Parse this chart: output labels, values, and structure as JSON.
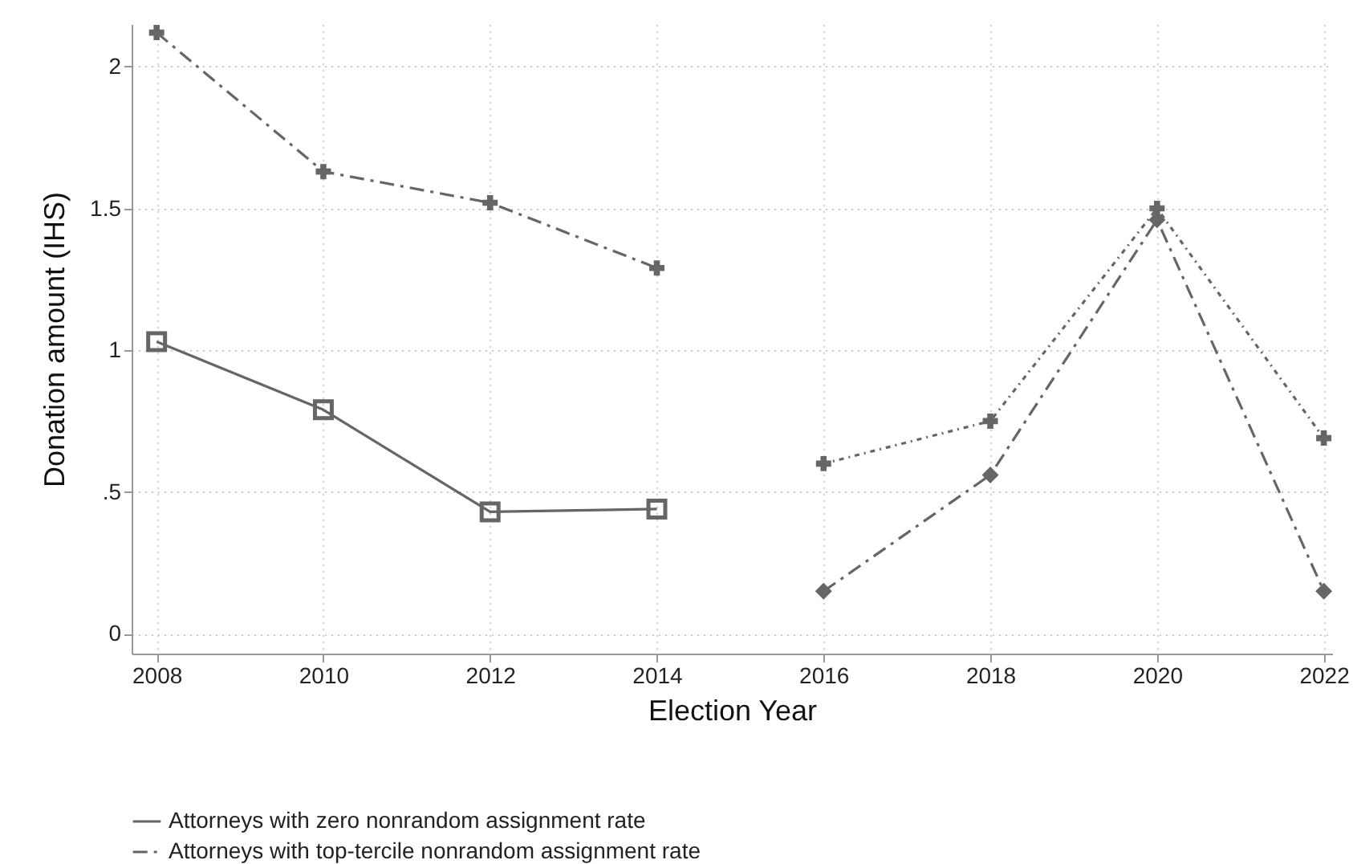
{
  "chart_data": {
    "type": "line",
    "xlabel": "Election Year",
    "ylabel": "Donation amount (IHS)",
    "xlim": [
      2007.7,
      2022.1
    ],
    "xticks": [
      2008,
      2010,
      2012,
      2014,
      2016,
      2018,
      2020,
      2022
    ],
    "ylim": [
      -0.07,
      2.15
    ],
    "yticks": [
      0,
      {
        "value": 0.5,
        "label": ".5"
      },
      1,
      1.5,
      2
    ],
    "grid": true,
    "legend": "bottom",
    "series": [
      {
        "name": "Attorneys with zero nonrandom assignment rate",
        "color": "#666666",
        "marker": "square",
        "line_style": "solid",
        "x": [
          2008,
          2010,
          2012,
          2014
        ],
        "values": [
          1.03,
          0.79,
          0.43,
          0.44
        ]
      },
      {
        "name": "Attorneys with top-tercile nonrandom assignment rate",
        "color": "#666666",
        "marker": "cross",
        "line_style": "dashed",
        "x": [
          2008,
          2010,
          2012,
          2014
        ],
        "values": [
          2.12,
          1.63,
          1.52,
          1.29
        ]
      },
      {
        "color": "#666666",
        "marker": "diamond",
        "line_style": "dashed",
        "x": [
          2016,
          2018,
          2020,
          2022
        ],
        "values": [
          0.15,
          0.56,
          1.46,
          0.15
        ]
      },
      {
        "color": "#666666",
        "marker": "cross",
        "line_style": "dotted",
        "x": [
          2016,
          2018,
          2020,
          2022
        ],
        "values": [
          0.6,
          0.75,
          1.5,
          0.69
        ]
      }
    ]
  }
}
